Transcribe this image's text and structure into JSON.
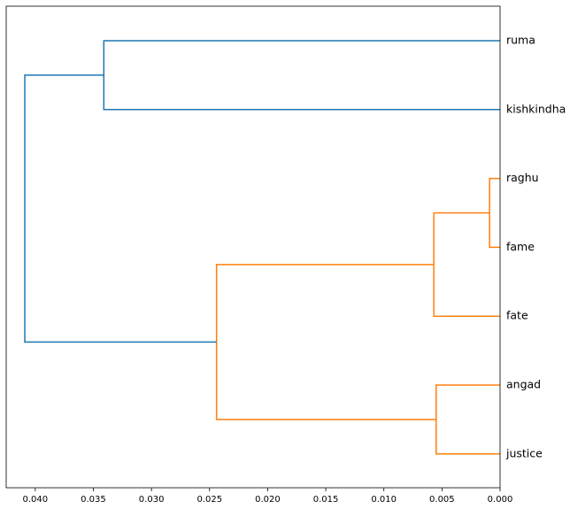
{
  "chart_data": {
    "type": "dendrogram",
    "orientation": "left",
    "leaves": [
      "ruma",
      "kishkindha",
      "raghu",
      "fame",
      "fate",
      "angad",
      "justice"
    ],
    "xlim": [
      0.0425,
      0.0
    ],
    "xticks": [
      0.04,
      0.035,
      0.03,
      0.025,
      0.02,
      0.015,
      0.01,
      0.005,
      0.0
    ],
    "xtick_labels": [
      "0.040",
      "0.035",
      "0.030",
      "0.025",
      "0.020",
      "0.015",
      "0.010",
      "0.005",
      "0.000"
    ],
    "merges": [
      {
        "left": "leaf:2",
        "right": "leaf:3",
        "distance": 0.0009,
        "color": "#ff7f0e"
      },
      {
        "left": "merge:0",
        "right": "leaf:4",
        "distance": 0.0057,
        "color": "#ff7f0e"
      },
      {
        "left": "leaf:5",
        "right": "leaf:6",
        "distance": 0.0055,
        "color": "#ff7f0e"
      },
      {
        "left": "merge:1",
        "right": "merge:2",
        "distance": 0.0244,
        "color": "#ff7f0e"
      },
      {
        "left": "leaf:0",
        "right": "leaf:1",
        "distance": 0.0341,
        "color": "#1f77b4"
      },
      {
        "left": "merge:4",
        "right": "merge:3",
        "distance": 0.0409,
        "color": "#1f77b4"
      }
    ],
    "title": "",
    "xlabel": "",
    "ylabel": "",
    "grid": false
  }
}
